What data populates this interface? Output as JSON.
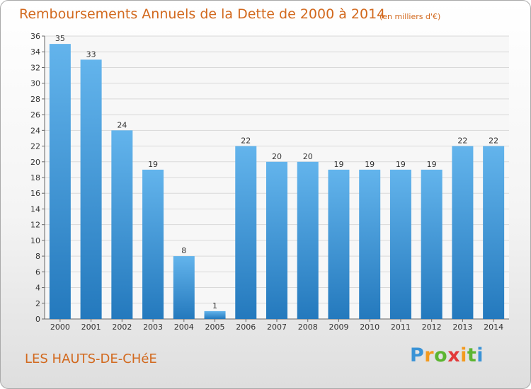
{
  "title": "Remboursements Annuels de la Dette de 2000 à 2014",
  "subtitle": "(en milliers d'€)",
  "place": "LES HAUTS-DE-CHéE",
  "logo": {
    "text": "Proxiti",
    "colors": [
      "#3a93d6",
      "#f39a1e",
      "#5cb531",
      "#e23a3a"
    ]
  },
  "colors": {
    "bar_top": "#63b4ec",
    "bar_bottom": "#2479bd",
    "grid": "#d9d9d9",
    "title": "#d2691e"
  },
  "chart_data": {
    "type": "bar",
    "title": "Remboursements Annuels de la Dette de 2000 à 2014",
    "subtitle": "(en milliers d'€)",
    "xlabel": "",
    "ylabel": "",
    "categories": [
      "2000",
      "2001",
      "2002",
      "2003",
      "2004",
      "2005",
      "2006",
      "2007",
      "2008",
      "2009",
      "2010",
      "2011",
      "2012",
      "2013",
      "2014"
    ],
    "values": [
      35,
      33,
      24,
      19,
      8,
      1,
      22,
      20,
      20,
      19,
      19,
      19,
      19,
      22,
      22
    ],
    "ylim": [
      0,
      36
    ],
    "ytick_step": 2,
    "grid": true,
    "data_labels": true
  }
}
